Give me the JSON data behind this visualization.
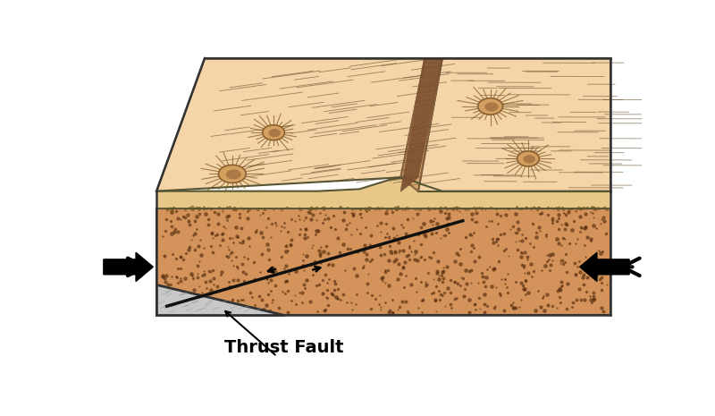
{
  "fig_width": 8.0,
  "fig_height": 4.65,
  "dpi": 100,
  "bg_color": "#ffffff",
  "top_surface_color": "#F5D5A8",
  "top_surface_edge": "#555533",
  "front_face_color": "#E8C090",
  "mid_layer_color": "#E8C888",
  "mid_layer_dots": "#7A5020",
  "bottom_block_color": "#D4935A",
  "bottom_block_edge": "#333333",
  "bottom_dots_color": "#5A3010",
  "scarp_color": "#C8A070",
  "scarp_stripe_color": "#7A5030",
  "fault_line_color": "#111111",
  "arrow_color": "#111111",
  "label_text": "Thrust Fault",
  "label_fontsize": 14,
  "label_fontweight": "bold",
  "scratch_color": "#6A5030",
  "crater_center_color": "#C8A060",
  "crater_ray_color": "#7A5520"
}
